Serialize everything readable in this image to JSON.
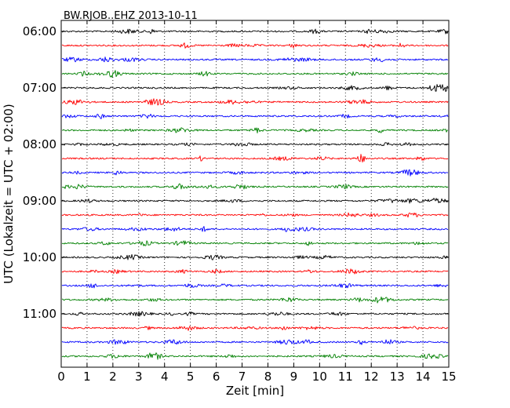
{
  "chart_data": {
    "type": "line",
    "title": "BW.RJOB..EHZ 2013-10-11",
    "xlabel": "Zeit  [min]",
    "ylabel": "UTC (Lokalzeit = UTC + 02:00)",
    "xlim": [
      0,
      15
    ],
    "x_ticks": [
      "0",
      "1",
      "2",
      "3",
      "4",
      "5",
      "6",
      "7",
      "8",
      "9",
      "10",
      "11",
      "12",
      "13",
      "14",
      "15"
    ],
    "y_ticks": [
      "06:00",
      "07:00",
      "08:00",
      "09:00",
      "10:00",
      "11:00"
    ],
    "grid_x": true,
    "minutes_per_trace": 15,
    "trace_colors": [
      "#000000",
      "#ff0000",
      "#0000ff",
      "#008000"
    ],
    "traces": [
      {
        "start": "06:00"
      },
      {
        "start": "06:15"
      },
      {
        "start": "06:30"
      },
      {
        "start": "06:45"
      },
      {
        "start": "07:00"
      },
      {
        "start": "07:15"
      },
      {
        "start": "07:30"
      },
      {
        "start": "07:45"
      },
      {
        "start": "08:00"
      },
      {
        "start": "08:15"
      },
      {
        "start": "08:30"
      },
      {
        "start": "08:45"
      },
      {
        "start": "09:00"
      },
      {
        "start": "09:15"
      },
      {
        "start": "09:30"
      },
      {
        "start": "09:45"
      },
      {
        "start": "10:00"
      },
      {
        "start": "10:15"
      },
      {
        "start": "10:30"
      },
      {
        "start": "10:45"
      },
      {
        "start": "11:00"
      },
      {
        "start": "11:15"
      },
      {
        "start": "11:30"
      },
      {
        "start": "11:45"
      }
    ]
  }
}
